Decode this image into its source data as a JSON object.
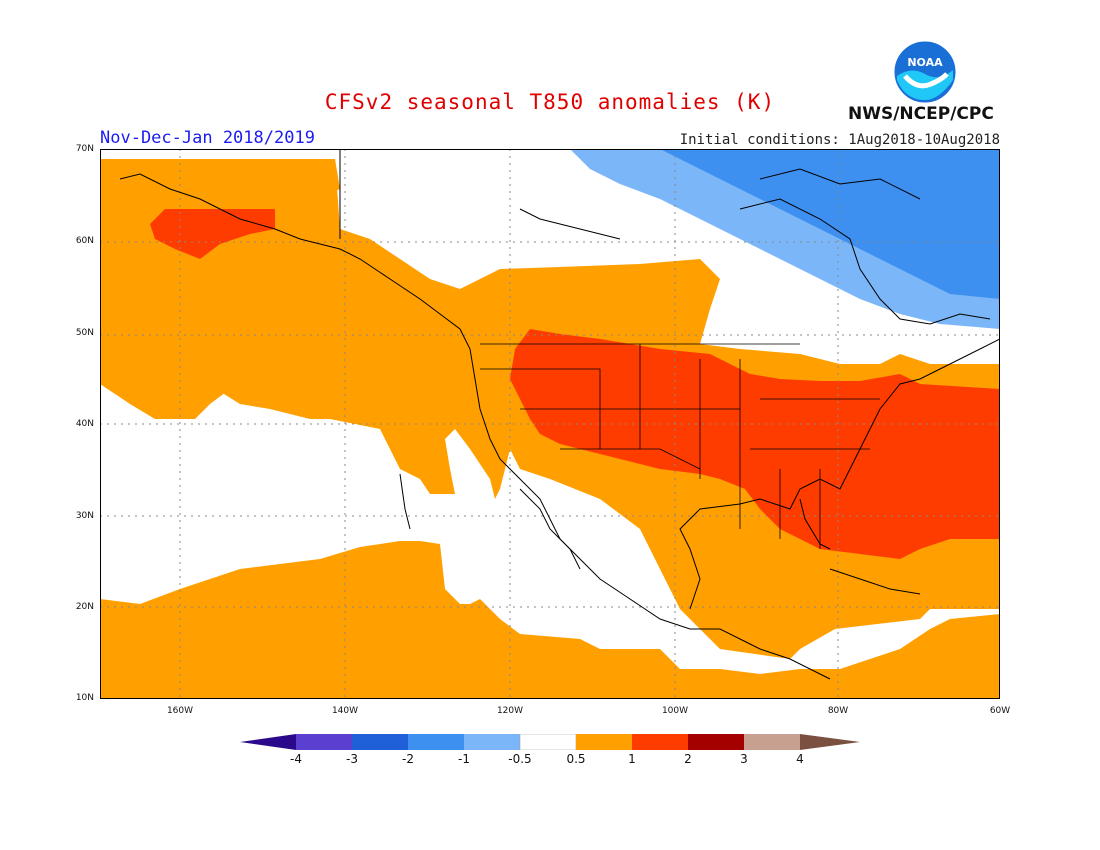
{
  "header": {
    "title": "CFSv2 seasonal T850 anomalies (K)",
    "season": "Nov-Dec-Jan 2018/2019",
    "initial_conditions": "Initial conditions: 1Aug2018-10Aug2018",
    "organization": "NWS/NCEP/CPC",
    "logo_text": "NOAA"
  },
  "axes": {
    "lat_labels": [
      "70N",
      "60N",
      "50N",
      "40N",
      "30N",
      "20N",
      "10N"
    ],
    "lon_labels": [
      "160W",
      "140W",
      "120W",
      "100W",
      "80W",
      "60W"
    ]
  },
  "legend": {
    "labels": [
      "-4",
      "-3",
      "-2",
      "-1",
      "-0.5",
      "0.5",
      "1",
      "2",
      "3",
      "4"
    ],
    "colors": [
      "#2a0a8a",
      "#5a3fd0",
      "#1f60d8",
      "#3d8ff0",
      "#7ab6f8",
      "#ffffff",
      "#ff9f00",
      "#ff3c00",
      "#a50000",
      "#c8a090",
      "#7a5040"
    ]
  },
  "map": {
    "colors": {
      "land_line": "#000000",
      "grid": "#888888"
    }
  }
}
